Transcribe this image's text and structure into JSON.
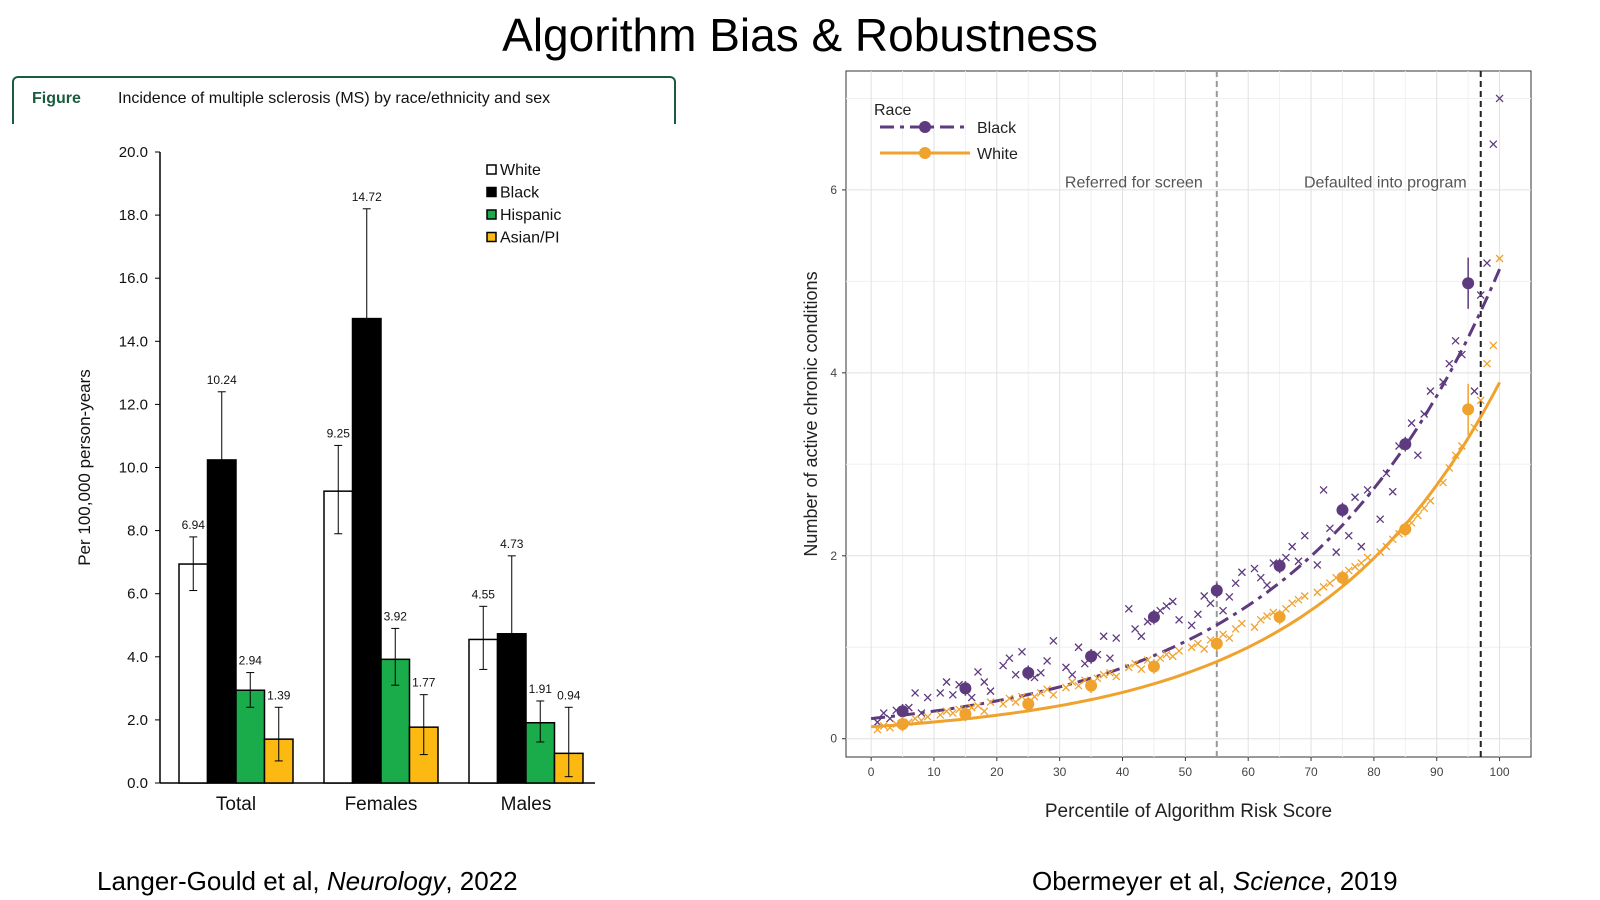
{
  "slide": {
    "title": "Algorithm Bias & Robustness",
    "captions": [
      {
        "authors": "Langer-Gould et al, ",
        "journal": "Neurology",
        "year": ", 2022"
      },
      {
        "authors": "Obermeyer et al, ",
        "journal": "Science",
        "year": ", 2019"
      }
    ]
  },
  "figure_header": {
    "tag": "Figure",
    "description": "Incidence of multiple sclerosis (MS) by race/ethnicity and sex"
  },
  "chart_data": [
    {
      "type": "bar",
      "title": "",
      "xlabel": "",
      "ylabel": "Per 100,000 person-years",
      "ylim": [
        0,
        20
      ],
      "yticks": [
        "0.0",
        "2.0",
        "4.0",
        "6.0",
        "8.0",
        "10.0",
        "12.0",
        "14.0",
        "16.0",
        "18.0",
        "20.0"
      ],
      "categories": [
        "Total",
        "Females",
        "Males"
      ],
      "legend_position": "top-right",
      "series": [
        {
          "name": "White",
          "color": "#ffffff",
          "values": [
            6.94,
            9.25,
            4.55
          ],
          "labels": [
            "6.94",
            "9.25",
            "4.55"
          ],
          "err_low": [
            6.1,
            7.9,
            3.6
          ],
          "err_high": [
            7.8,
            10.7,
            5.6
          ]
        },
        {
          "name": "Black",
          "color": "#000000",
          "values": [
            10.24,
            14.72,
            4.73
          ],
          "labels": [
            "10.24",
            "14.72",
            "4.73"
          ],
          "err_low": [
            8.4,
            11.7,
            2.9
          ],
          "err_high": [
            12.4,
            18.2,
            7.2
          ]
        },
        {
          "name": "Hispanic",
          "color": "#1aab4b",
          "values": [
            2.94,
            3.92,
            1.91
          ],
          "labels": [
            "2.94",
            "3.92",
            "1.91"
          ],
          "err_low": [
            2.4,
            3.1,
            1.3
          ],
          "err_high": [
            3.5,
            4.9,
            2.6
          ]
        },
        {
          "name": "Asian/PI",
          "color": "#fcb912",
          "values": [
            1.39,
            1.77,
            0.94
          ],
          "labels": [
            "1.39",
            "1.77",
            "0.94"
          ],
          "err_low": [
            0.7,
            0.9,
            0.2
          ],
          "err_high": [
            2.4,
            2.8,
            2.4
          ]
        }
      ]
    },
    {
      "type": "scatter",
      "title": "",
      "xlabel": "Percentile of Algorithm Risk Score",
      "ylabel": "Number of active chronic conditions",
      "xlim": [
        -4,
        105
      ],
      "ylim": [
        -0.2,
        7.3
      ],
      "xticks": [
        0,
        10,
        20,
        30,
        40,
        50,
        60,
        70,
        80,
        90,
        100
      ],
      "yticks": [
        0,
        2,
        4,
        6
      ],
      "legend_title": "Race",
      "legend_position": "top-left",
      "annotations": [
        {
          "text": "Referred for screen",
          "x": 55,
          "y": 6.05
        },
        {
          "text": "Defaulted into program",
          "x": 97,
          "y": 6.05
        }
      ],
      "vlines": [
        {
          "x": 55,
          "color": "#999999"
        },
        {
          "x": 97,
          "color": "#222222"
        }
      ],
      "series": [
        {
          "name": "Black",
          "color": "#5e3a7e",
          "means_x": [
            5,
            15,
            25,
            35,
            45,
            55,
            65,
            75,
            85,
            95
          ],
          "means_y": [
            0.3,
            0.55,
            0.72,
            0.9,
            1.33,
            1.62,
            1.89,
            2.5,
            3.22,
            4.98
          ],
          "fit": {
            "a": 0.22,
            "b": 0.0315
          },
          "points_x": [
            1,
            2,
            3,
            4,
            6,
            7,
            8,
            9,
            11,
            12,
            13,
            14,
            16,
            17,
            18,
            19,
            21,
            22,
            23,
            24,
            26,
            27,
            28,
            29,
            31,
            32,
            33,
            34,
            36,
            37,
            38,
            39,
            41,
            42,
            43,
            44,
            46,
            47,
            48,
            49,
            51,
            52,
            53,
            54,
            56,
            57,
            58,
            59,
            61,
            62,
            63,
            64,
            66,
            67,
            68,
            69,
            71,
            72,
            73,
            74,
            76,
            77,
            78,
            79,
            81,
            82,
            83,
            84,
            86,
            87,
            88,
            89,
            91,
            92,
            93,
            94,
            96,
            97,
            98,
            99,
            100
          ],
          "points_y": [
            0.18,
            0.28,
            0.22,
            0.31,
            0.34,
            0.5,
            0.28,
            0.45,
            0.5,
            0.62,
            0.48,
            0.59,
            0.45,
            0.73,
            0.62,
            0.52,
            0.8,
            0.88,
            0.7,
            0.95,
            0.67,
            0.72,
            0.85,
            1.07,
            0.78,
            0.7,
            1.0,
            0.82,
            0.92,
            1.12,
            0.88,
            1.1,
            1.42,
            1.2,
            1.12,
            1.28,
            1.4,
            1.45,
            1.5,
            1.3,
            1.24,
            1.36,
            1.56,
            1.48,
            1.4,
            1.55,
            1.7,
            1.82,
            1.86,
            1.76,
            1.68,
            1.92,
            1.98,
            2.1,
            1.94,
            2.22,
            1.9,
            2.72,
            2.3,
            2.04,
            2.22,
            2.64,
            2.1,
            2.72,
            2.4,
            2.9,
            2.7,
            3.2,
            3.45,
            3.1,
            3.55,
            3.8,
            3.9,
            4.1,
            4.35,
            4.2,
            3.8,
            4.85,
            5.2,
            6.5,
            7.0
          ]
        },
        {
          "name": "White",
          "color": "#f0a22e",
          "means_x": [
            5,
            15,
            25,
            35,
            45,
            55,
            65,
            75,
            85,
            95
          ],
          "means_y": [
            0.16,
            0.27,
            0.38,
            0.58,
            0.79,
            1.04,
            1.33,
            1.76,
            2.29,
            3.6
          ],
          "fit": {
            "a": 0.13,
            "b": 0.034
          },
          "points_x": [
            1,
            2,
            3,
            4,
            6,
            7,
            8,
            9,
            11,
            12,
            13,
            14,
            16,
            17,
            18,
            19,
            21,
            22,
            23,
            24,
            26,
            27,
            28,
            29,
            31,
            32,
            33,
            34,
            36,
            37,
            38,
            39,
            41,
            42,
            43,
            44,
            46,
            47,
            48,
            49,
            51,
            52,
            53,
            54,
            56,
            57,
            58,
            59,
            61,
            62,
            63,
            64,
            66,
            67,
            68,
            69,
            71,
            72,
            73,
            74,
            76,
            77,
            78,
            79,
            81,
            82,
            83,
            84,
            86,
            87,
            88,
            89,
            91,
            92,
            93,
            94,
            96,
            97,
            98,
            99,
            100
          ],
          "points_y": [
            0.1,
            0.14,
            0.12,
            0.16,
            0.18,
            0.22,
            0.2,
            0.24,
            0.26,
            0.3,
            0.28,
            0.32,
            0.34,
            0.36,
            0.3,
            0.4,
            0.38,
            0.44,
            0.4,
            0.46,
            0.46,
            0.5,
            0.54,
            0.48,
            0.56,
            0.62,
            0.58,
            0.64,
            0.66,
            0.7,
            0.72,
            0.68,
            0.78,
            0.82,
            0.76,
            0.86,
            0.88,
            0.92,
            0.9,
            0.96,
            1.0,
            1.04,
            0.98,
            1.08,
            1.14,
            1.1,
            1.2,
            1.26,
            1.22,
            1.3,
            1.34,
            1.38,
            1.42,
            1.48,
            1.52,
            1.56,
            1.6,
            1.66,
            1.7,
            1.76,
            1.84,
            1.88,
            1.92,
            1.98,
            2.04,
            2.1,
            2.18,
            2.24,
            2.36,
            2.44,
            2.52,
            2.6,
            2.8,
            2.96,
            3.1,
            3.2,
            3.4,
            3.7,
            4.1,
            4.3,
            5.25
          ]
        }
      ]
    }
  ]
}
